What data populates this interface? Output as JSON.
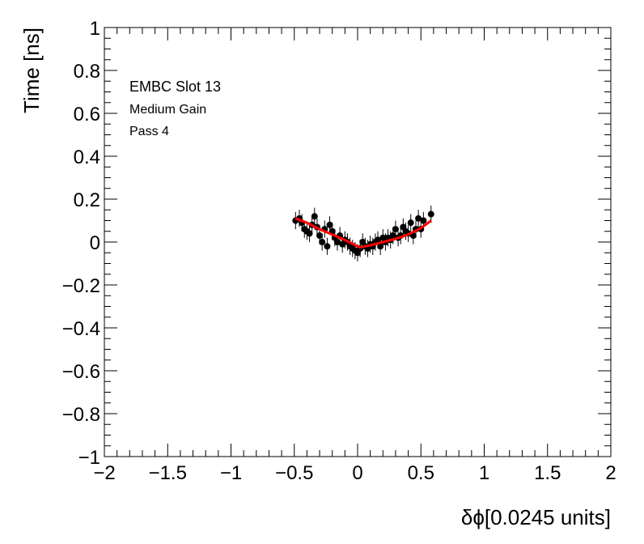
{
  "chart_data": {
    "type": "scatter",
    "xlabel": "δϕ[0.0245 units]",
    "ylabel": "Time [ns]",
    "xlim": [
      -2,
      2
    ],
    "ylim": [
      -1,
      1
    ],
    "xticks": [
      "−2",
      "−1.5",
      "−1",
      "−0.5",
      "0",
      "0.5",
      "1",
      "1.5",
      "2"
    ],
    "yticks": [
      "−1",
      "−0.8",
      "−0.6",
      "−0.4",
      "−0.2",
      "0",
      "0.2",
      "0.4",
      "0.6",
      "0.8",
      "1"
    ],
    "annotations": [
      "EMBC Slot 13",
      "Medium Gain",
      "Pass 4"
    ],
    "grid": false,
    "series": [
      {
        "kind": "points-with-errors",
        "color": "#000000",
        "x": [
          -0.49,
          -0.46,
          -0.44,
          -0.42,
          -0.4,
          -0.38,
          -0.36,
          -0.34,
          -0.32,
          -0.3,
          -0.28,
          -0.26,
          -0.24,
          -0.22,
          -0.2,
          -0.18,
          -0.16,
          -0.14,
          -0.12,
          -0.1,
          -0.08,
          -0.06,
          -0.04,
          -0.02,
          0.0,
          0.02,
          0.04,
          0.06,
          0.08,
          0.1,
          0.12,
          0.14,
          0.16,
          0.18,
          0.2,
          0.22,
          0.24,
          0.26,
          0.28,
          0.3,
          0.32,
          0.34,
          0.36,
          0.38,
          0.4,
          0.42,
          0.44,
          0.46,
          0.48,
          0.5,
          0.52,
          0.58
        ],
        "y": [
          0.1,
          0.11,
          0.09,
          0.06,
          0.05,
          0.04,
          0.08,
          0.12,
          0.07,
          0.03,
          0.0,
          0.06,
          -0.02,
          0.08,
          0.05,
          0.02,
          0.0,
          0.03,
          -0.01,
          0.01,
          0.0,
          -0.02,
          -0.03,
          -0.04,
          -0.05,
          -0.03,
          0.0,
          -0.02,
          -0.03,
          -0.01,
          -0.02,
          0.0,
          0.01,
          -0.02,
          0.02,
          0.0,
          0.02,
          0.01,
          0.03,
          0.06,
          0.02,
          0.03,
          0.07,
          0.05,
          0.04,
          0.09,
          0.03,
          0.06,
          0.11,
          0.06,
          0.1,
          0.13
        ],
        "yerr": 0.04
      },
      {
        "kind": "fit-line",
        "color": "#ff0000",
        "x": [
          -0.49,
          -0.4,
          -0.3,
          -0.2,
          -0.1,
          0.0,
          0.02,
          0.1,
          0.2,
          0.3,
          0.4,
          0.5,
          0.58
        ],
        "y": [
          0.11,
          0.09,
          0.06,
          0.035,
          0.01,
          -0.02,
          -0.025,
          -0.015,
          0.0,
          0.015,
          0.035,
          0.065,
          0.1
        ]
      }
    ]
  }
}
